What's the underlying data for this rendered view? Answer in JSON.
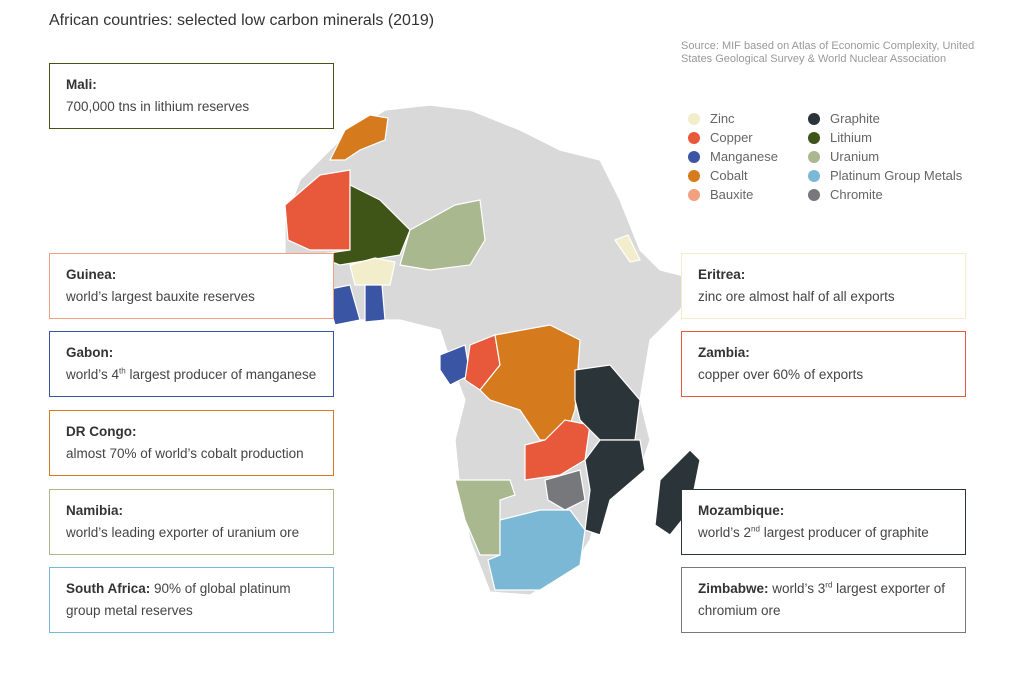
{
  "title": "African countries: selected low carbon minerals (2019)",
  "source": "Source: MIF based on Atlas of Economic Complexity, United States Geological Survey & World Nuclear Association",
  "legend": [
    {
      "name": "Zinc",
      "color": "#f2eecb"
    },
    {
      "name": "Copper",
      "color": "#e8583a"
    },
    {
      "name": "Manganese",
      "color": "#3a55a4"
    },
    {
      "name": "Cobalt",
      "color": "#d67a1e"
    },
    {
      "name": "Bauxite",
      "color": "#f2a07f"
    },
    {
      "name": "Graphite",
      "color": "#2b3439"
    },
    {
      "name": "Lithium",
      "color": "#3f5417"
    },
    {
      "name": "Uranium",
      "color": "#a9b88e"
    },
    {
      "name": "Platinum Group Metals",
      "color": "#7ab8d6"
    },
    {
      "name": "Chromite",
      "color": "#77787b"
    }
  ],
  "callouts": [
    {
      "country": "Mali:",
      "text": "700,000 tns in lithium reserves"
    },
    {
      "country": "Guinea:",
      "text": "world’s largest bauxite reserves"
    },
    {
      "country": "Gabon:",
      "text": "world’s 4",
      "sup": "th",
      "after": " largest producer of manganese"
    },
    {
      "country": "DR Congo:",
      "text": "almost 70% of world’s cobalt production"
    },
    {
      "country": "Namibia:",
      "text": "world’s leading exporter of uranium ore"
    },
    {
      "country": "South Africa:",
      "text": " 90% of global platinum group metal reserves"
    },
    {
      "country": "Eritrea:",
      "text": "zinc ore almost half of all exports"
    },
    {
      "country": "Zambia:",
      "text": "copper over 60% of exports"
    },
    {
      "country": "Mozambique:",
      "text": "world’s 2",
      "sup": "nd",
      "after": " largest producer of graphite"
    },
    {
      "country": "Zimbabwe:",
      "text": " world’s 3",
      "sup": "rd",
      "after": " largest exporter of chromium ore"
    }
  ]
}
